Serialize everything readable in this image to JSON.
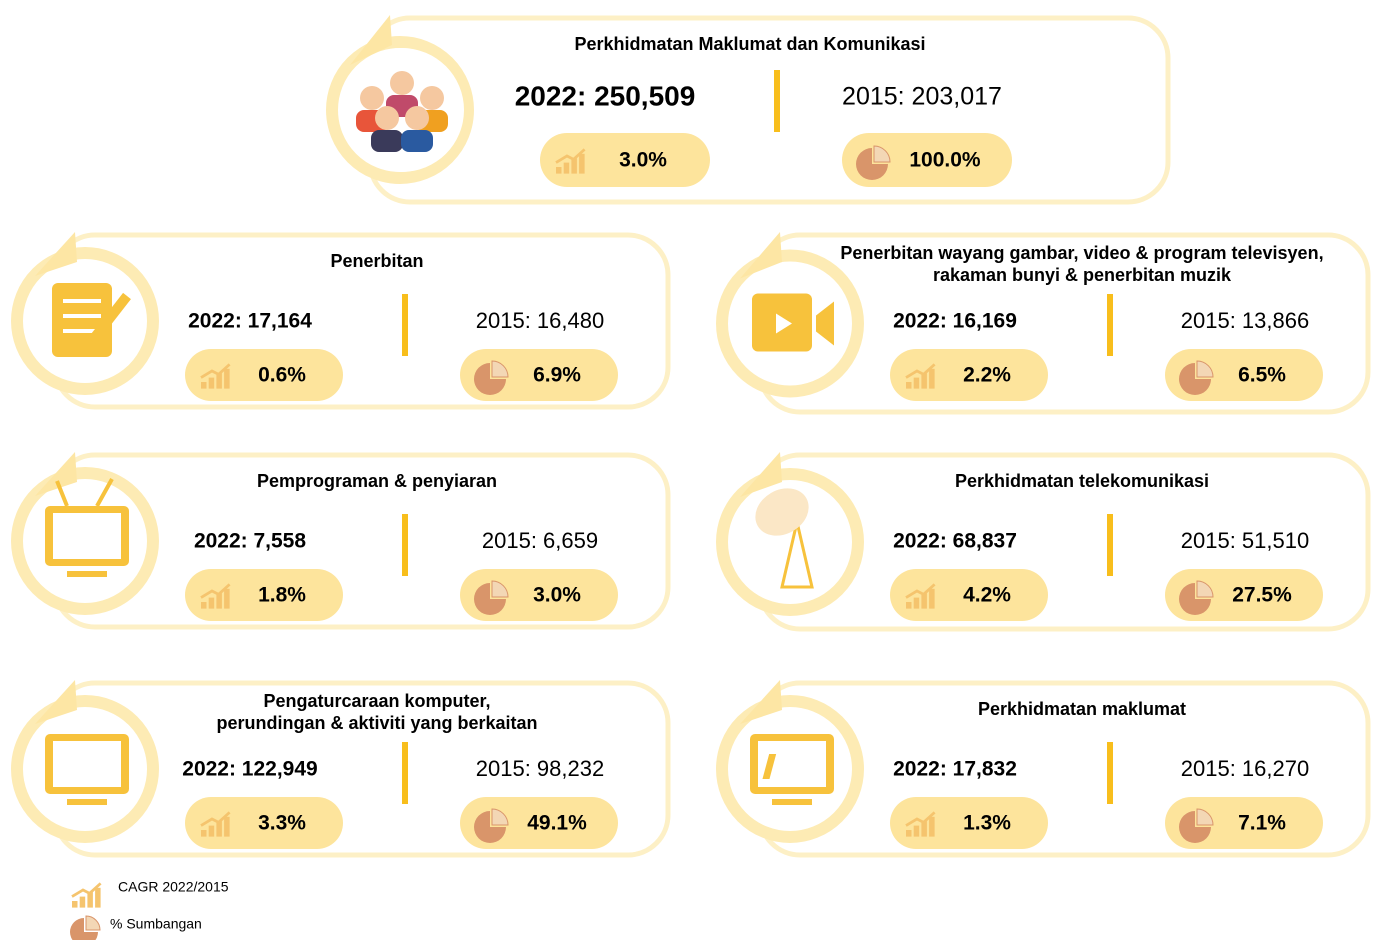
{
  "cards": [
    {
      "title": [
        "Perkhidmatan Maklumat dan Komunikasi"
      ],
      "value_2022": "2022: 250,509",
      "value_2015": "2015: 203,017",
      "cagr": "3.0%",
      "share": "100.0%"
    },
    {
      "title": [
        "Penerbitan"
      ],
      "value_2022": "2022: 17,164",
      "value_2015": "2015: 16,480",
      "cagr": "0.6%",
      "share": "6.9%"
    },
    {
      "title": [
        "Penerbitan wayang gambar, video & program televisyen,",
        "rakaman bunyi & penerbitan muzik"
      ],
      "value_2022": "2022: 16,169",
      "value_2015": "2015: 13,866",
      "cagr": "2.2%",
      "share": "6.5%"
    },
    {
      "title": [
        "Pemprograman & penyiaran"
      ],
      "value_2022": "2022: 7,558",
      "value_2015": "2015: 6,659",
      "cagr": "1.8%",
      "share": "3.0%"
    },
    {
      "title": [
        "Perkhidmatan telekomunikasi"
      ],
      "value_2022": "2022: 68,837",
      "value_2015": "2015: 51,510",
      "cagr": "4.2%",
      "share": "27.5%"
    },
    {
      "title": [
        "Pengaturcaraan komputer,",
        "perundingan & aktiviti yang berkaitan"
      ],
      "value_2022": "2022: 122,949",
      "value_2015": "2015: 98,232",
      "cagr": "3.3%",
      "share": "49.1%"
    },
    {
      "title": [
        "Perkhidmatan maklumat"
      ],
      "value_2022": "2022: 17,832",
      "value_2015": "2015: 16,270",
      "cagr": "1.3%",
      "share": "7.1%"
    }
  ],
  "legend": {
    "cagr": "CAGR 2022/2015",
    "share": "% Sumbangan"
  }
}
